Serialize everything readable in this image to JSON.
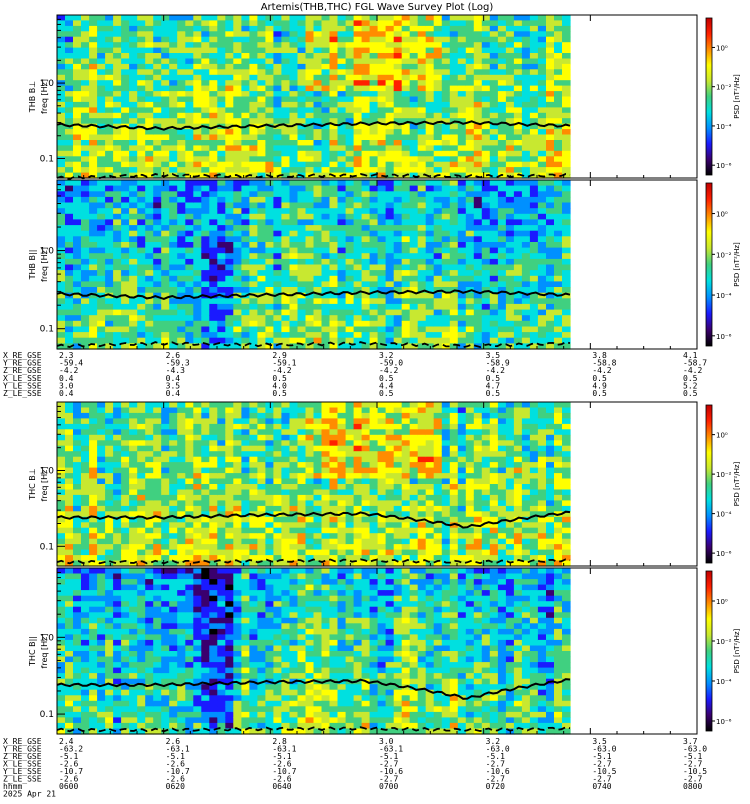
{
  "title": "Artemis(THB,THC) FGL Wave Survey Plot (Log)",
  "colorbar": {
    "label": "PSD [nT²/Hz]",
    "ticks": [
      "10⁰",
      "10⁻²",
      "10⁻⁴",
      "10⁻⁶"
    ]
  },
  "colors": {
    "colormap": [
      "#000000",
      "#3a006e",
      "#1a1aff",
      "#0090ff",
      "#00e0e0",
      "#40d080",
      "#c8e830",
      "#ffff00",
      "#ff8c00",
      "#ff2000",
      "#c00000"
    ],
    "line": "#000000"
  },
  "panels": [
    {
      "id": "thb-bperp",
      "label_line1": "THB B⊥",
      "label_line2": "freq [Hz]",
      "yticks": [
        "1.0",
        "0.1"
      ]
    },
    {
      "id": "thb-bpar",
      "label_line1": "THB B||",
      "label_line2": "freq [Hz]",
      "yticks": [
        "1.0",
        "0.1"
      ]
    },
    {
      "id": "thc-bperp",
      "label_line1": "THC B⊥",
      "label_line2": "freq [Hz]",
      "yticks": [
        "1.0",
        "0.1"
      ]
    },
    {
      "id": "thc-bpar",
      "label_line1": "THC B||",
      "label_line2": "freq [Hz]",
      "yticks": [
        "1.0",
        "0.1"
      ]
    }
  ],
  "ephem_b": {
    "labels": [
      "X_RE_GSE",
      "Y_RE_GSE",
      "Z_RE_GSE",
      "X_LE_SSE",
      "Y_LE_SSE",
      "Z_LE_SSE"
    ],
    "columns": [
      [
        "2.3",
        "-59.4",
        "-4.2",
        "0.4",
        "3.0",
        "0.4"
      ],
      [
        "2.6",
        "-59.3",
        "-4.3",
        "0.4",
        "3.5",
        "0.4"
      ],
      [
        "2.9",
        "-59.1",
        "-4.2",
        "0.5",
        "4.0",
        "0.5"
      ],
      [
        "3.2",
        "-59.0",
        "-4.2",
        "0.5",
        "4.4",
        "0.5"
      ],
      [
        "3.5",
        "-58.9",
        "-4.2",
        "0.5",
        "4.7",
        "0.5"
      ],
      [
        "3.8",
        "-58.8",
        "-4.2",
        "0.5",
        "4.9",
        "0.5"
      ],
      [
        "4.1",
        "-58.7",
        "-4.2",
        "0.5",
        "5.2",
        "0.5"
      ]
    ]
  },
  "ephem_c": {
    "labels": [
      "X_RE_GSE",
      "Y_RE_GSE",
      "Z_RE_GSE",
      "X_LE_SSE",
      "Y_LE_SSE",
      "Z_LE_SSE",
      "hhmm",
      "2025 Apr 21"
    ],
    "columns": [
      [
        "2.4",
        "-63.2",
        "-5.1",
        "-2.6",
        "-10.7",
        "-2.6",
        "0600"
      ],
      [
        "2.6",
        "-63.1",
        "-5.1",
        "-2.6",
        "-10.7",
        "-2.6",
        "0620"
      ],
      [
        "2.8",
        "-63.1",
        "-5.1",
        "-2.6",
        "-10.7",
        "-2.6",
        "0640"
      ],
      [
        "3.0",
        "-63.1",
        "-5.1",
        "-2.7",
        "-10.6",
        "-2.7",
        "0700"
      ],
      [
        "3.2",
        "-63.0",
        "-5.1",
        "-2.7",
        "-10.6",
        "-2.7",
        "0720"
      ],
      [
        "3.5",
        "-63.0",
        "-5.1",
        "-2.7",
        "-10.5",
        "-2.7",
        "0740"
      ],
      [
        "3.7",
        "-63.0",
        "-5.1",
        "-2.7",
        "-10.5",
        "-2.7",
        "0800"
      ]
    ]
  },
  "chart_data": {
    "type": "heatmap",
    "title": "Artemis(THB,THC) FGL Wave Survey Plot (Log)",
    "x_ticks": [
      "0600",
      "0620",
      "0640",
      "0700",
      "0720",
      "0740",
      "0800"
    ],
    "xlabel": "hhmm",
    "date": "2025 Apr 21",
    "ylabel": "freq [Hz]",
    "yscale": "log",
    "ylim": [
      0.055,
      8.0
    ],
    "colorbar_label": "PSD [nT²/Hz]",
    "colorbar_range_log10": [
      -6.5,
      1.5
    ],
    "data_end_time": "0741",
    "series": [
      {
        "name": "THB B⊥",
        "solid_line_hz": [
          0.28,
          0.25,
          0.27,
          0.29,
          0.3,
          0.27
        ],
        "dashed_line_hz": [
          0.055,
          0.06,
          0.058,
          0.06,
          0.058,
          0.06
        ]
      },
      {
        "name": "THB B||",
        "solid_line_hz": [
          0.28,
          0.25,
          0.27,
          0.29,
          0.3,
          0.27
        ],
        "dashed_line_hz": [
          0.06,
          0.065,
          0.062,
          0.065,
          0.06,
          0.065
        ]
      },
      {
        "name": "THC B⊥",
        "solid_line_hz": [
          0.24,
          0.24,
          0.26,
          0.27,
          0.18,
          0.28
        ],
        "dashed_line_hz": [
          0.062,
          0.062,
          0.064,
          0.065,
          0.062,
          0.065
        ]
      },
      {
        "name": "THC B||",
        "solid_line_hz": [
          0.24,
          0.24,
          0.26,
          0.27,
          0.16,
          0.28
        ],
        "dashed_line_hz": [
          0.062,
          0.062,
          0.064,
          0.065,
          0.062,
          0.065
        ]
      }
    ]
  }
}
